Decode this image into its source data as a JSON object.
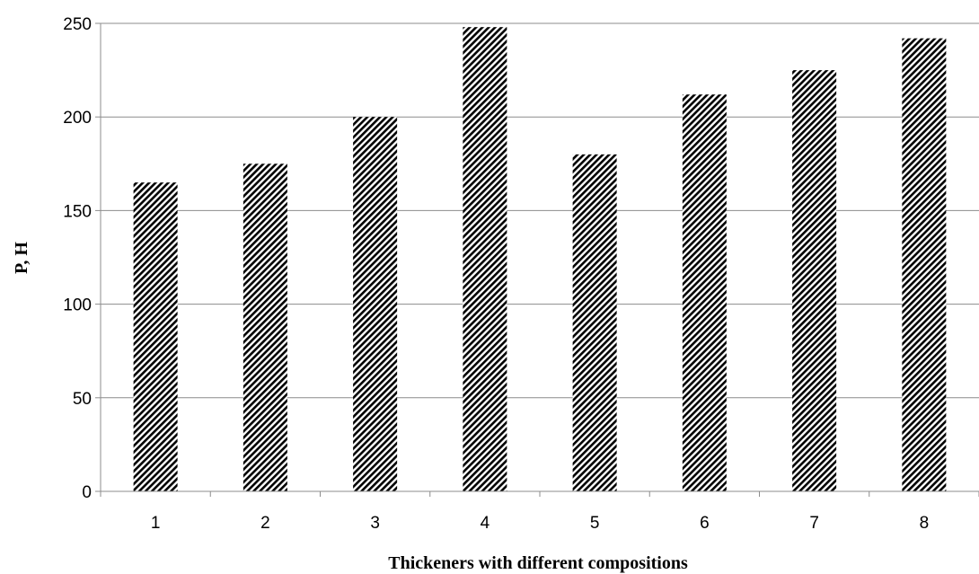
{
  "chart_data": {
    "type": "bar",
    "categories": [
      "1",
      "2",
      "3",
      "4",
      "5",
      "6",
      "7",
      "8"
    ],
    "values": [
      165,
      175,
      200,
      248,
      180,
      212,
      225,
      242
    ],
    "title": "",
    "xlabel": "Thickeners with different compositions",
    "ylabel": "P, H",
    "ylim": [
      0,
      250
    ],
    "yticks": [
      0,
      50,
      100,
      150,
      200,
      250
    ],
    "grid": "horizontal",
    "legend": "none",
    "bar_pattern": "diagonal-hatch",
    "colors": {
      "bar_hatch": "#000000",
      "bar_bg": "#ffffff",
      "grid": "#8c8c8c",
      "axis": "#8c8c8c"
    }
  }
}
